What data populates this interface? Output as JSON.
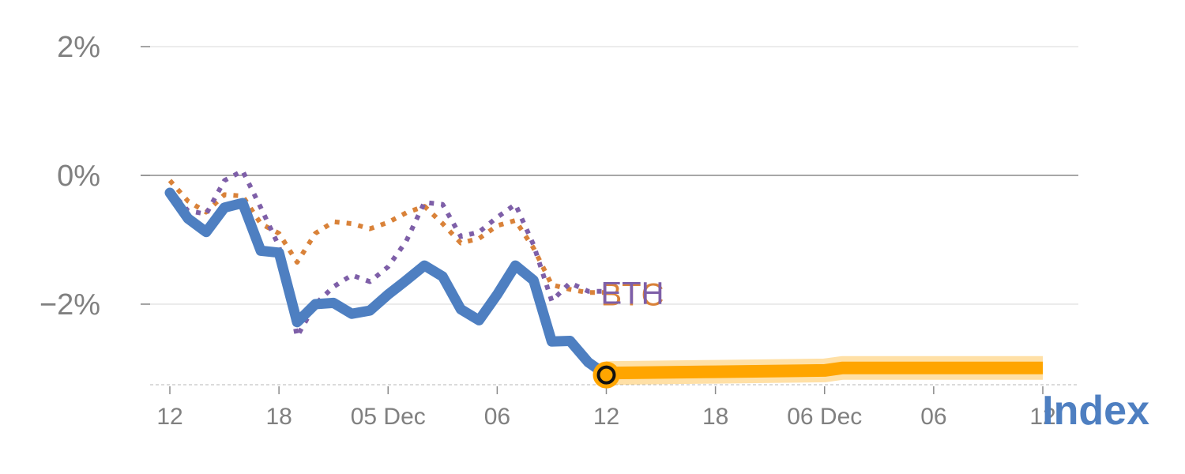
{
  "chart_data": {
    "type": "line",
    "title": "",
    "xlabel": "",
    "ylabel": "",
    "y_unit": "%",
    "ylim": [
      -3.2,
      2.2
    ],
    "yticks": [
      {
        "value": 2,
        "label": "2%"
      },
      {
        "value": 0,
        "label": "0%"
      },
      {
        "value": -2,
        "label": "−2%"
      }
    ],
    "x_range": [
      0,
      48
    ],
    "xticks": [
      {
        "x": 0,
        "label": "12"
      },
      {
        "x": 6,
        "label": "18"
      },
      {
        "x": 12,
        "label": "05 Dec"
      },
      {
        "x": 18,
        "label": "06"
      },
      {
        "x": 24,
        "label": "12"
      },
      {
        "x": 30,
        "label": "18"
      },
      {
        "x": 36,
        "label": "06 Dec"
      },
      {
        "x": 42,
        "label": "06"
      },
      {
        "x": 48,
        "label": "12"
      }
    ],
    "grid": true,
    "legend": "none",
    "index_label": "Index",
    "series": [
      {
        "name": "Index",
        "color": "#4e7fc1",
        "style": "solid",
        "x": [
          0,
          1,
          2,
          3,
          4,
          5,
          6,
          7,
          8,
          9,
          10,
          11,
          12,
          13,
          14,
          15,
          16,
          17,
          18,
          19,
          20,
          21,
          22,
          23,
          24
        ],
        "y": [
          -0.27,
          -0.67,
          -0.88,
          -0.5,
          -0.43,
          -1.17,
          -1.2,
          -2.28,
          -2.0,
          -1.98,
          -2.15,
          -2.1,
          -1.85,
          -1.63,
          -1.4,
          -1.57,
          -2.08,
          -2.25,
          -1.85,
          -1.4,
          -1.63,
          -2.58,
          -2.57,
          -2.9,
          -3.1
        ]
      },
      {
        "name": "BTC",
        "color": "#d98239",
        "style": "dotted",
        "x": [
          0,
          1,
          2,
          3,
          4,
          5,
          6,
          7,
          8,
          9,
          10,
          11,
          12,
          13,
          14,
          15,
          16,
          17,
          18,
          19,
          20,
          21,
          22,
          23,
          24
        ],
        "y": [
          -0.08,
          -0.4,
          -0.57,
          -0.3,
          -0.32,
          -0.75,
          -0.9,
          -1.35,
          -0.9,
          -0.72,
          -0.75,
          -0.83,
          -0.73,
          -0.58,
          -0.48,
          -0.75,
          -1.05,
          -0.98,
          -0.78,
          -0.7,
          -1.13,
          -1.7,
          -1.77,
          -1.82,
          -1.82
        ]
      },
      {
        "name": "ETH",
        "color": "#7e5fa8",
        "style": "dotted",
        "x": [
          0,
          1,
          2,
          3,
          4,
          5,
          6,
          7,
          8,
          9,
          10,
          11,
          12,
          13,
          14,
          15,
          16,
          17,
          18,
          19,
          20,
          21,
          22,
          23,
          24
        ],
        "y": [
          -0.23,
          -0.55,
          -0.6,
          -0.08,
          0.07,
          -0.5,
          -1.1,
          -2.5,
          -2.0,
          -1.73,
          -1.55,
          -1.65,
          -1.42,
          -1.02,
          -0.42,
          -0.45,
          -0.95,
          -0.88,
          -0.65,
          -0.45,
          -1.08,
          -1.95,
          -1.67,
          -1.8,
          -1.8
        ]
      },
      {
        "name": "forecast",
        "color": "#ffa500",
        "style": "band",
        "x": [
          24,
          30,
          36,
          37,
          42,
          48
        ],
        "y": [
          -3.07,
          -3.05,
          -3.03,
          -2.99,
          -2.99,
          -2.99
        ]
      }
    ],
    "labels": [
      {
        "text": "BTC",
        "series": "BTC"
      },
      {
        "text": "ETH",
        "series": "ETH"
      }
    ],
    "marker": {
      "x": 24,
      "y": -3.1
    }
  }
}
